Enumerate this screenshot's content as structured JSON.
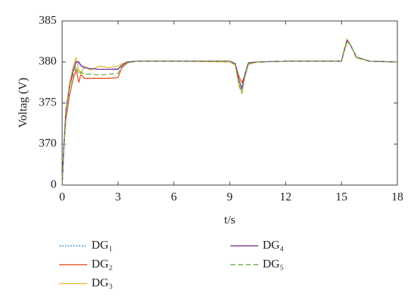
{
  "chart_data": {
    "type": "line",
    "x_label": "t/s",
    "y_label": "Voltag (V)",
    "x": [
      0,
      0.1,
      0.2,
      0.4,
      0.6,
      0.75,
      0.9,
      1.0,
      1.2,
      1.5,
      2,
      2.5,
      3,
      3.2,
      3.5,
      4,
      6,
      9,
      9.3,
      9.5,
      9.65,
      9.8,
      10,
      10.5,
      12,
      15,
      15.1,
      15.3,
      15.5,
      15.8,
      16.5,
      18
    ],
    "series": [
      {
        "name": "DG₁",
        "color": "#3a8fd0",
        "dash": "2,2",
        "values": [
          0,
          370,
          374,
          377,
          379,
          380.2,
          379.8,
          379.5,
          379.3,
          379.2,
          379.1,
          379.1,
          379.2,
          379.6,
          380,
          380.1,
          380.1,
          380.1,
          379.8,
          377.8,
          376.6,
          378.5,
          379.9,
          380,
          380.1,
          380.1,
          381,
          382.6,
          382,
          380.6,
          380.1,
          380
        ]
      },
      {
        "name": "DG₂",
        "color": "#e0562a",
        "dash": "none",
        "values": [
          0,
          370,
          373,
          376,
          378,
          379,
          377.5,
          378.5,
          378,
          378,
          378,
          378,
          378.1,
          379.3,
          379.9,
          380.1,
          380.1,
          380.1,
          379.7,
          378.2,
          377.5,
          378.3,
          379.8,
          380,
          380.1,
          380.1,
          381,
          382.7,
          382,
          380.6,
          380.1,
          380
        ]
      },
      {
        "name": "DG₃",
        "color": "#e8b83a",
        "dash": "none",
        "values": [
          0,
          370,
          374,
          377.5,
          379.5,
          380.5,
          379,
          378.5,
          379.5,
          379,
          379.5,
          379.3,
          379.5,
          379.8,
          380,
          380.1,
          380.1,
          380,
          379.6,
          377,
          376.2,
          378,
          379.7,
          380,
          380.1,
          380.1,
          381.2,
          382.8,
          382,
          380.5,
          380.1,
          380
        ]
      },
      {
        "name": "DG₄",
        "color": "#7a3a9a",
        "dash": "none",
        "values": [
          0,
          370,
          374,
          377,
          379,
          380,
          380,
          379.6,
          379.3,
          379.2,
          379.1,
          379.1,
          379.1,
          379.6,
          380,
          380.1,
          380.1,
          380.1,
          379.8,
          377.7,
          376.8,
          378.4,
          379.9,
          380,
          380.1,
          380.1,
          381,
          382.6,
          382,
          380.6,
          380.1,
          380
        ]
      },
      {
        "name": "DG₅",
        "color": "#6ab04c",
        "dash": "7,4",
        "values": [
          0,
          370,
          374,
          377,
          378.5,
          379.5,
          378.5,
          378.8,
          378.5,
          378.5,
          378.4,
          378.5,
          378.6,
          379.5,
          379.9,
          380.1,
          380.1,
          380.1,
          379.7,
          377.3,
          376.2,
          378.2,
          379.8,
          380,
          380.1,
          380.1,
          381,
          382.5,
          382,
          380.6,
          380.1,
          380
        ]
      }
    ],
    "xlim": [
      0,
      18
    ],
    "xticks": [
      0,
      3,
      6,
      9,
      12,
      15,
      18
    ],
    "ylim": [
      0,
      385
    ],
    "yticks": [
      0,
      370,
      375,
      380,
      385
    ]
  }
}
